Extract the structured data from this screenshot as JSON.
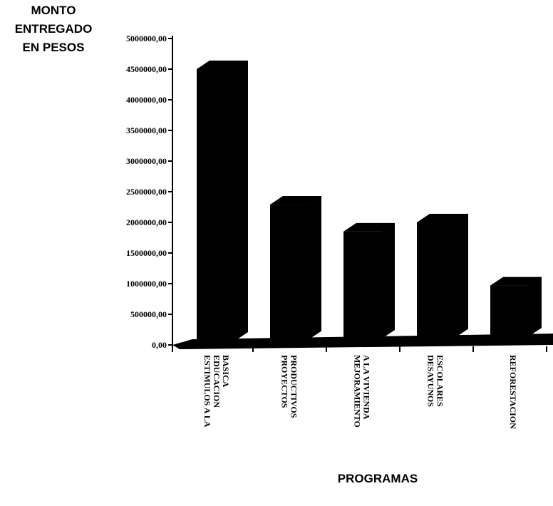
{
  "chart_data": {
    "type": "bar",
    "ylabel_lines": [
      "MONTO",
      "ENTREGADO",
      "EN PESOS"
    ],
    "xlabel": "PROGRAMAS",
    "ylim": [
      0,
      5000000
    ],
    "yticks": [
      0,
      500000,
      1000000,
      1500000,
      2000000,
      2500000,
      3000000,
      3500000,
      4000000,
      4500000,
      5000000
    ],
    "ytick_labels": [
      "0,00",
      "500000,00",
      "1000000,00",
      "1500000,00",
      "2000000,00",
      "2500000,00",
      "3000000,00",
      "3500000,00",
      "4000000,00",
      "4500000,00",
      "5000000,00"
    ],
    "categories": [
      [
        "ESTIMULOS A LA",
        "EDUCACION",
        "BASICA"
      ],
      [
        "PROYECTOS",
        "PRODUCTIVOS"
      ],
      [
        "MEJORAMIENTO",
        "A LA VIVIENDA"
      ],
      [
        "DESAYUNOS",
        "ESCOLARES"
      ],
      [
        "REFORESTACION"
      ]
    ],
    "values": [
      4500000,
      2290000,
      1850000,
      2000000,
      970000
    ],
    "colors": {
      "bar": "#000000",
      "background": "#ffffff"
    },
    "style": "3d",
    "grid": false
  }
}
